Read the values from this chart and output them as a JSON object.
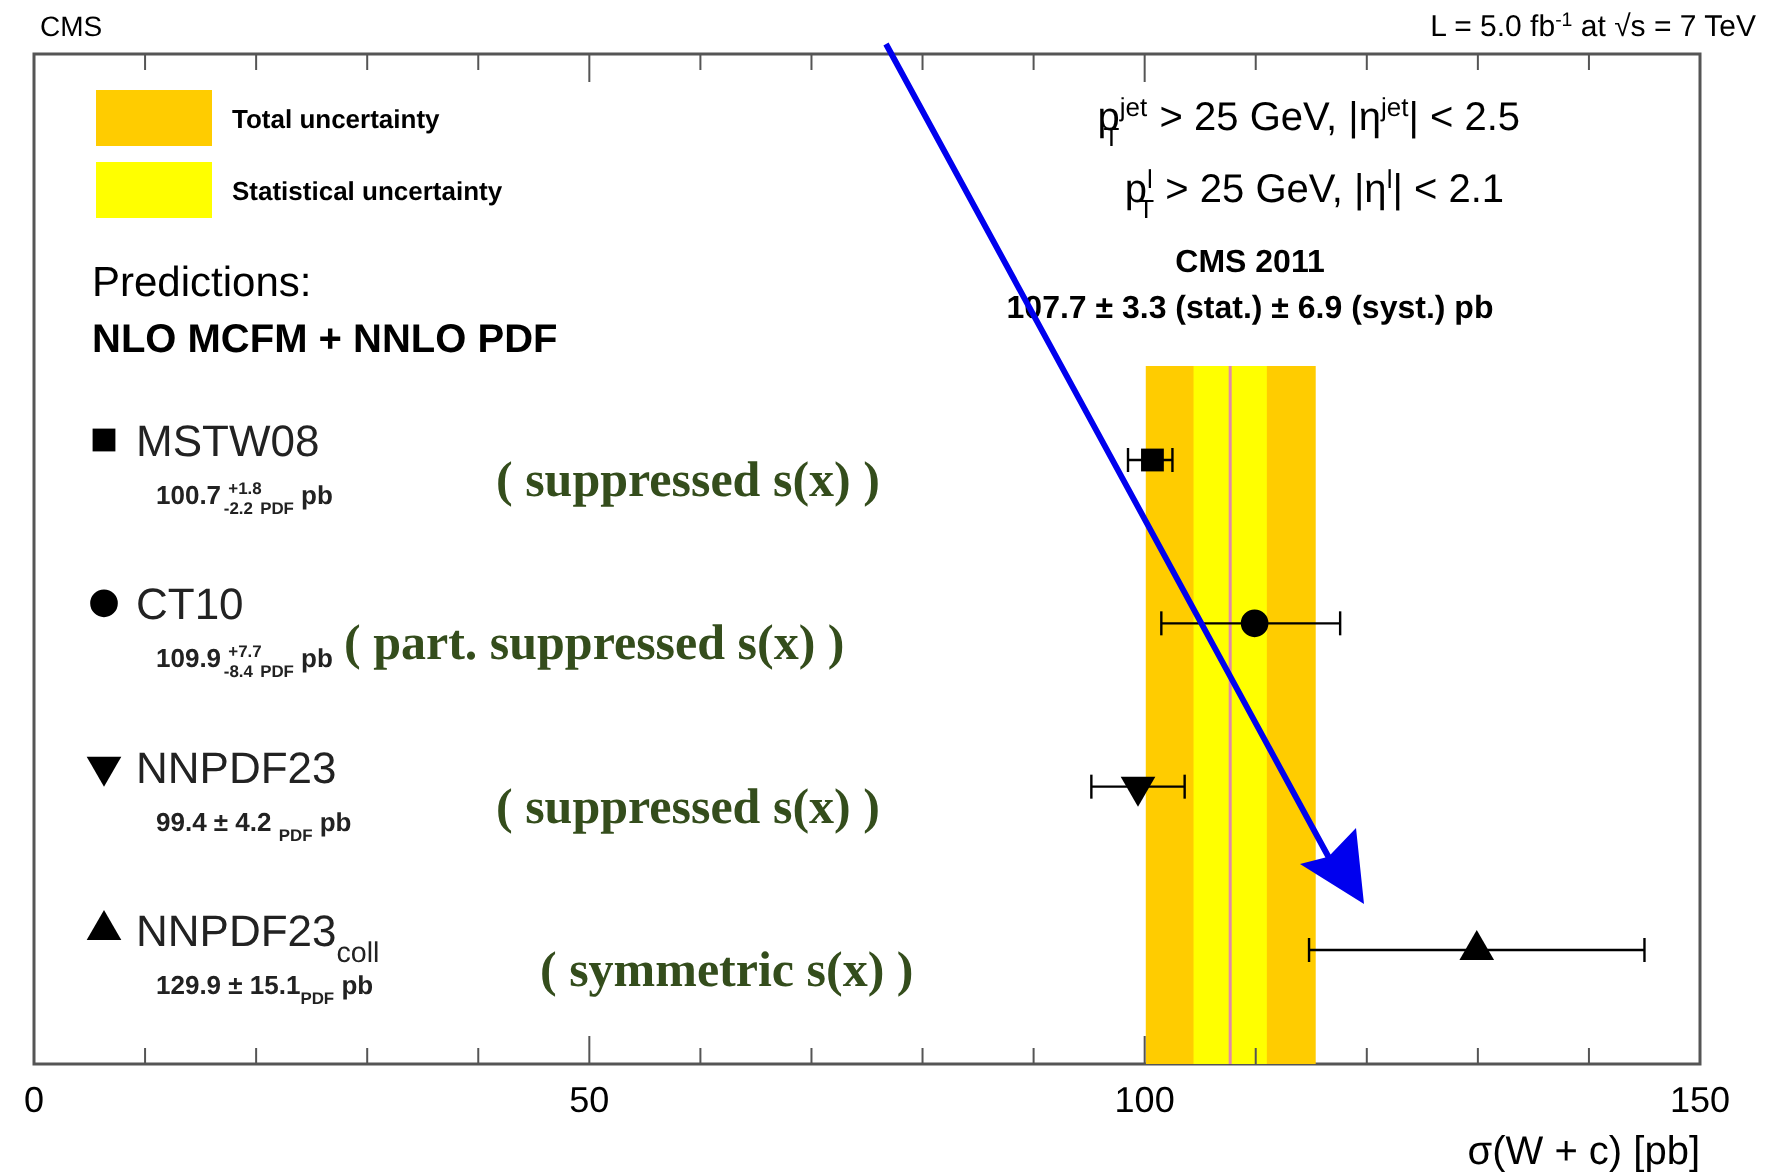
{
  "chart_data": {
    "type": "scatter",
    "orientation": "horizontal",
    "title": "CMS",
    "subtitle": "L = 5.0 fb$^{-1}$ at √s = 7 TeV",
    "xlabel": "σ(W + c) [pb]",
    "categories": [
      null,
      null,
      null,
      null
    ],
    "series": [
      {
        "name": "MSTW08",
        "marker": "square",
        "color": "#000000",
        "values": [
          100.7,
          null,
          null,
          null
        ],
        "errors": [
          [
            98.5,
            102.5
          ],
          null,
          null,
          null
        ]
      },
      {
        "name": "CT10",
        "marker": "circle",
        "color": "#000000",
        "values": [
          null,
          109.9,
          null,
          null
        ],
        "errors": [
          null,
          [
            101.5,
            117.6
          ],
          null,
          null
        ]
      },
      {
        "name": "NNPDF23",
        "marker": "triangle-down",
        "color": "#000000",
        "values": [
          null,
          null,
          99.4,
          null
        ],
        "errors": [
          null,
          null,
          4.2,
          null
        ]
      },
      {
        "name": "NNPDF23$_{coll}$",
        "marker": "triangle",
        "color": "#000000",
        "values": [
          null,
          null,
          null,
          129.9
        ],
        "errors": [
          null,
          null,
          null,
          15.1
        ]
      }
    ],
    "xlim": [
      0,
      150
    ],
    "xticks": [
      0,
      {
        "value": 10,
        "label": null
      },
      {
        "value": 20,
        "label": null
      },
      {
        "value": 30,
        "label": null
      },
      {
        "value": 40,
        "label": null
      },
      50,
      {
        "value": 60,
        "label": null
      },
      {
        "value": 70,
        "label": null
      },
      {
        "value": 80,
        "label": null
      },
      {
        "value": 90,
        "label": null
      },
      100,
      {
        "value": 110,
        "label": null
      },
      {
        "value": 120,
        "label": null
      },
      {
        "value": 130,
        "label": null
      },
      {
        "value": 140,
        "label": null
      },
      150
    ],
    "tick_labels": "x",
    "grid": false,
    "legend": "top left",
    "bands": [
      {
        "axis": "x",
        "from": 100.1,
        "to": 115.4,
        "label": "Total uncertainty",
        "color": "#ffcc00"
      },
      {
        "axis": "x",
        "from": 104.4,
        "to": 111.0,
        "label": "Statistical uncertainty",
        "color": "#ffff00"
      }
    ],
    "ref_lines": [
      {
        "axis": "x",
        "value": 107.7,
        "color": "#e08aa8"
      }
    ],
    "annotations": [
      "p$^{jet}$$_{T}$ > 25 GeV, |η$^{jet}$| < 2.5",
      "p$^{l}$$_{T}$ > 25 GeV, |η$^{l}$| < 2.1",
      "Predictions:",
      "NLO MCFM + NNLO PDF",
      "CMS 2011",
      "107.7 ± 3.3  (stat.) ± 6.9  (syst.) pb",
      "100.7 $^{+1.8}$$_{-2.2}$ $_{PDF}$ pb",
      "109.9 $^{+7.7}$$_{-8.4}$ $_{PDF}$ pb",
      "99.4 ± 4.2 $_{PDF}$ pb",
      "129.9 ± 15.1$_{PDF}$ pb",
      "(  suppressed s(x) )",
      "(  part. suppressed s(x) )",
      "(  suppressed s(x) )",
      "( symmetric s(x) )"
    ]
  }
}
